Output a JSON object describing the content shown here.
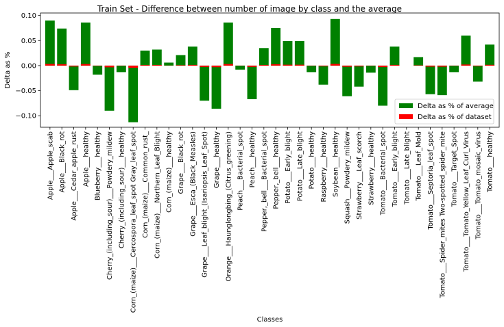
{
  "chart_data": {
    "type": "bar",
    "title": "Train Set - Difference between number of image by class and the average",
    "xlabel": "Classes",
    "ylabel": "Delta as %",
    "ylim": [
      -0.123,
      0.105
    ],
    "yticks": [
      -0.1,
      -0.05,
      0.0,
      0.05,
      0.1
    ],
    "ytick_labels": [
      "−0.10",
      "−0.05",
      "0.00",
      "0.05",
      "0.10"
    ],
    "legend_position": "lower-right",
    "categories": [
      "Apple___Apple_scab",
      "Apple___Black_rot",
      "Apple___Cedar_apple_rust",
      "Apple___healthy",
      "Blueberry___healthy",
      "Cherry_(including_sour)___Powdery_mildew",
      "Cherry_(including_sour)___healthy",
      "Corn_(maize)___Cercospora_leaf_spot Gray_leaf_spot",
      "Corn_(maize)___Common_rust_",
      "Corn_(maize)___Northern_Leaf_Blight",
      "Corn_(maize)___healthy",
      "Grape___Black_rot",
      "Grape___Esca_(Black_Measles)",
      "Grape___Leaf_blight_(Isariopsis_Leaf_Spot)",
      "Grape___healthy",
      "Orange___Haunglongbing_(Citrus_greening)",
      "Peach___Bacterial_spot",
      "Peach___healthy",
      "Pepper,_bell___Bacterial_spot",
      "Pepper,_bell___healthy",
      "Potato___Early_blight",
      "Potato___Late_blight",
      "Potato___healthy",
      "Raspberry___healthy",
      "Soybean___healthy",
      "Squash___Powdery_mildew",
      "Strawberry___Leaf_scorch",
      "Strawberry___healthy",
      "Tomato___Bacterial_spot",
      "Tomato___Early_blight",
      "Tomato___Late_blight",
      "Tomato___Leaf_Mold",
      "Tomato___Septoria_leaf_spot",
      "Tomato___Spider_mites Two-spotted_spider_mite",
      "Tomato___Target_Spot",
      "Tomato___Tomato_Yellow_Leaf_Curl_Virus",
      "Tomato___Tomato_mosaic_virus",
      "Tomato___healthy"
    ],
    "series": [
      {
        "name": "Delta as % of average",
        "color": "#008000",
        "values": [
          0.09,
          0.074,
          -0.049,
          0.086,
          -0.018,
          -0.09,
          -0.013,
          -0.113,
          0.03,
          0.032,
          0.006,
          0.021,
          0.038,
          -0.07,
          -0.086,
          0.086,
          -0.008,
          -0.067,
          0.035,
          0.075,
          0.049,
          0.049,
          -0.013,
          -0.038,
          0.093,
          -0.061,
          -0.042,
          -0.014,
          -0.08,
          0.038,
          0.0,
          0.017,
          -0.057,
          -0.059,
          -0.013,
          0.06,
          -0.032,
          0.042
        ]
      },
      {
        "name": "Delta as % of dataset",
        "color": "#ff0000",
        "values": [
          0.0034,
          0.0028,
          -0.0018,
          0.0032,
          -0.0007,
          -0.0034,
          -0.0005,
          -0.0043,
          0.0011,
          0.0012,
          0.0002,
          0.0008,
          0.0014,
          -0.0026,
          -0.0032,
          0.0032,
          -0.0003,
          -0.0025,
          0.0013,
          0.0028,
          0.0018,
          0.0018,
          -0.0005,
          -0.0014,
          0.0035,
          -0.0023,
          -0.0016,
          -0.0005,
          -0.003,
          0.0014,
          0.0,
          0.0006,
          -0.0021,
          -0.0022,
          -0.0005,
          0.0022,
          -0.0012,
          0.0016
        ]
      }
    ]
  }
}
